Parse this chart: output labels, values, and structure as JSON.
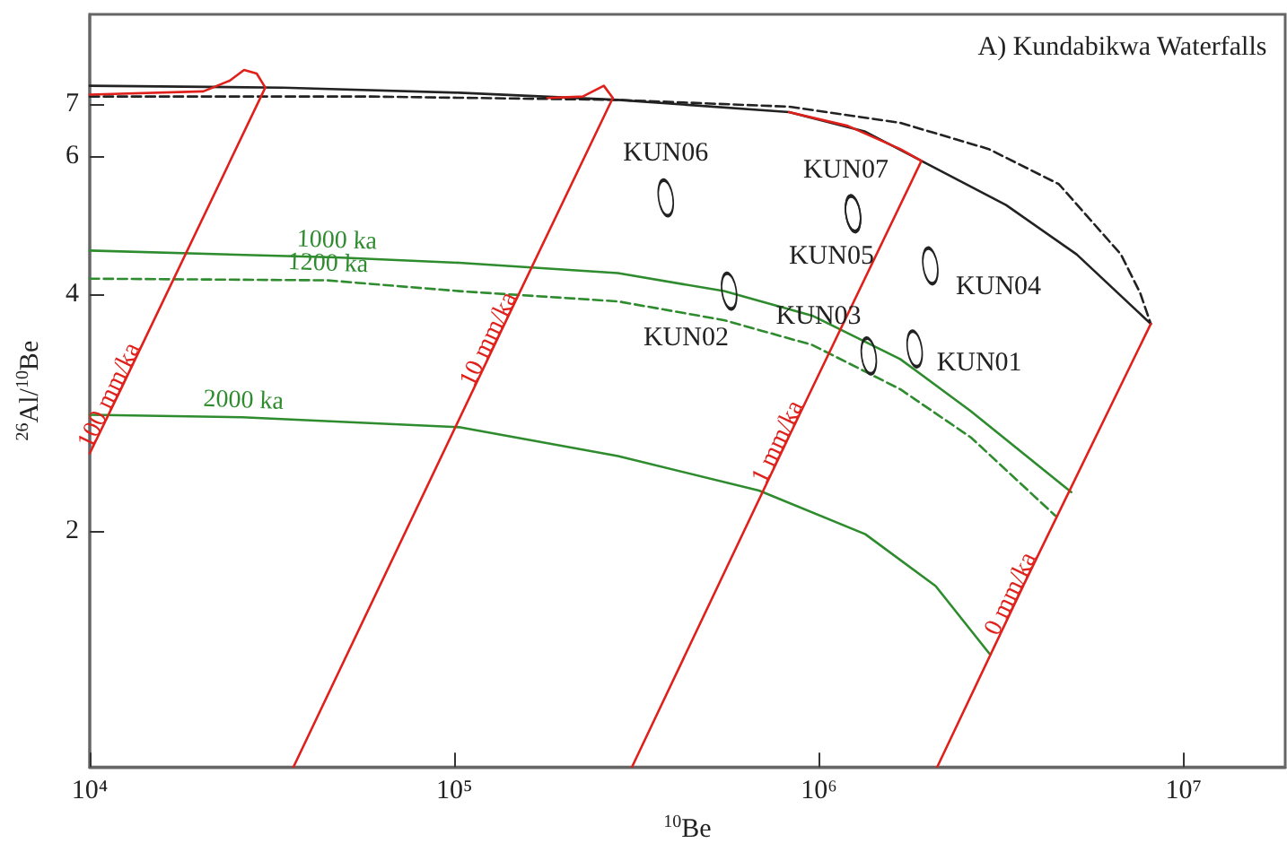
{
  "chart_data": {
    "type": "line",
    "title": "A) Kundabikwa Waterfalls",
    "xlabel": "$^{10}$Be",
    "ylabel": "$^{26}$Al/$^{10}$Be",
    "log": "xy",
    "xlim": [
      10000,
      19000000
    ],
    "ylim": [
      1,
      9.1
    ],
    "xticks": [
      {
        "value": 10000,
        "label": "10⁴"
      },
      {
        "value": 100000,
        "label": "10⁵"
      },
      {
        "value": 1000000,
        "label": "10⁶"
      },
      {
        "value": 10000000,
        "label": "10⁷"
      }
    ],
    "yticks": [
      2,
      4,
      6,
      7
    ],
    "grid": false,
    "legend": false,
    "series": [
      {
        "color": "#222222",
        "line_style": "solid",
        "x": [
          10000,
          33900,
          103000,
          281000,
          828000,
          1340000,
          1910000,
          3260000,
          5090000,
          8130000
        ],
        "values": [
          7.38,
          7.34,
          7.23,
          7.08,
          6.83,
          6.45,
          5.92,
          5.2,
          4.5,
          3.67
        ]
      },
      {
        "color": "#222222",
        "line_style": "dashed",
        "x": [
          10000,
          59100,
          281000,
          828000,
          1670000,
          2920000,
          4550000,
          6730000,
          7600000,
          8130000
        ],
        "values": [
          7.15,
          7.15,
          7.08,
          6.94,
          6.62,
          6.13,
          5.53,
          4.5,
          4.02,
          3.67
        ]
      },
      {
        "name": "1000 ka",
        "color": "#2e8b2e",
        "line_style": "solid",
        "x": [
          10000,
          47300,
          103000,
          281000,
          549000,
          958000,
          1670000,
          2610000,
          4920000
        ],
        "values": [
          4.55,
          4.46,
          4.39,
          4.26,
          4.04,
          3.76,
          3.31,
          2.84,
          2.24
        ]
      },
      {
        "name": "1200 ka",
        "color": "#2e8b2e",
        "line_style": "dashed",
        "x": [
          10000,
          44700,
          103000,
          281000,
          549000,
          958000,
          1670000,
          2610000,
          4450000
        ],
        "values": [
          4.19,
          4.17,
          4.04,
          3.92,
          3.71,
          3.45,
          3.03,
          2.63,
          2.09
        ]
      },
      {
        "name": "2000 ka",
        "color": "#2e8b2e",
        "line_style": "solid",
        "x": [
          10000,
          26200,
          103000,
          281000,
          685000,
          1340000,
          2090000,
          2950000
        ],
        "values": [
          2.81,
          2.79,
          2.71,
          2.49,
          2.25,
          1.98,
          1.7,
          1.39
        ]
      },
      {
        "name": "100 mm/ka",
        "color": "#e0201b",
        "line_style": "solid",
        "x": [
          10000,
          12300,
          30300,
          28700,
          26500,
          24200,
          20500,
          10000
        ],
        "values": [
          2.51,
          3.06,
          7.34,
          7.65,
          7.73,
          7.49,
          7.26,
          7.19
        ]
      },
      {
        "name": "10 mm/ka",
        "color": "#e0201b",
        "line_style": "solid",
        "x": [
          36200,
          135000,
          272000,
          257000,
          225000,
          180000
        ],
        "values": [
          1.0,
          3.61,
          7.12,
          7.38,
          7.15,
          7.12
        ]
      },
      {
        "name": "1 mm/ka",
        "color": "#e0201b",
        "line_style": "solid",
        "x": [
          307000,
          838000,
          1910000,
          1670000,
          1200000,
          828000
        ],
        "values": [
          1.0,
          2.67,
          5.92,
          6.13,
          6.56,
          6.83
        ]
      },
      {
        "name": "0 mm/ka",
        "color": "#e0201b",
        "line_style": "solid",
        "x": [
          2110000,
          3650000,
          8130000
        ],
        "values": [
          1.0,
          1.71,
          3.67
        ]
      },
      {
        "type": "scatter",
        "name": "KUN06",
        "color": "#222222",
        "x": [
          380000
        ],
        "values": [
          5.31
        ]
      },
      {
        "type": "scatter",
        "name": "KUN07",
        "color": "#222222",
        "x": [
          1240000
        ],
        "values": [
          5.07
        ]
      },
      {
        "type": "scatter",
        "name": "KUN05",
        "color": "#222222",
        "x": [
          1240000
        ],
        "values": [
          5.07
        ]
      },
      {
        "type": "scatter",
        "name": "KUN02",
        "color": "#222222",
        "x": [
          567000
        ],
        "values": [
          4.04
        ]
      },
      {
        "type": "scatter",
        "name": "KUN03",
        "color": "#222222",
        "x": [
          1370000
        ],
        "values": [
          3.34
        ]
      },
      {
        "type": "scatter",
        "name": "KUN04",
        "color": "#222222",
        "x": [
          2020000
        ],
        "values": [
          4.35
        ]
      },
      {
        "type": "scatter",
        "name": "KUN01",
        "color": "#222222",
        "x": [
          1830000
        ],
        "values": [
          3.41
        ]
      }
    ]
  }
}
